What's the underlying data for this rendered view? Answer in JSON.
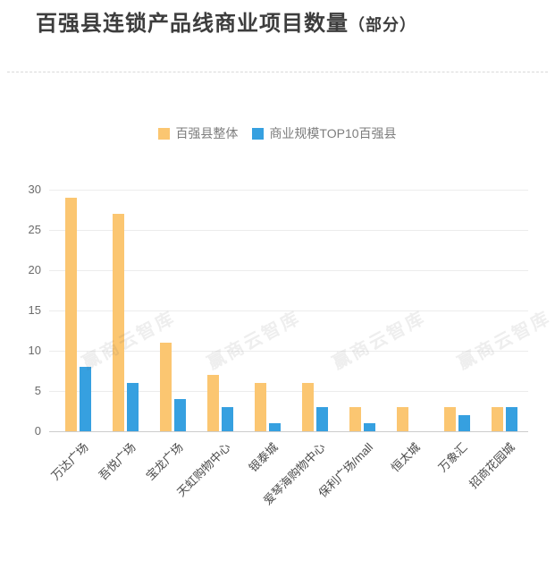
{
  "title": {
    "main": "百强县连锁产品线商业项目数量",
    "suffix": "（部分）"
  },
  "legend": [
    {
      "label": "百强县整体",
      "color": "#fbc671"
    },
    {
      "label": "商业规模TOP10百强县",
      "color": "#36a0e0"
    }
  ],
  "watermark": {
    "text": "赢商云智库"
  },
  "chart_data": {
    "type": "bar",
    "title": "百强县连锁产品线商业项目数量（部分）",
    "categories": [
      "万达广场",
      "吾悦广场",
      "宝龙广场",
      "天虹购物中心",
      "银泰城",
      "爱琴海购物中心",
      "保利广场/mall",
      "恒太城",
      "万象汇",
      "招商花园城"
    ],
    "series": [
      {
        "name": "百强县整体",
        "color": "#fbc671",
        "values": [
          29,
          27,
          11,
          7,
          6,
          6,
          3,
          3,
          3,
          3
        ]
      },
      {
        "name": "商业规模TOP10百强县",
        "color": "#36a0e0",
        "values": [
          8,
          6,
          4,
          3,
          1,
          3,
          1,
          0,
          2,
          3
        ]
      }
    ],
    "xlabel": "",
    "ylabel": "",
    "yticks": [
      0,
      5,
      10,
      15,
      20,
      25,
      30
    ],
    "ylim": [
      0,
      30
    ],
    "grid": true,
    "legend_position": "top-center",
    "xlabel_rotation_deg": 45
  }
}
